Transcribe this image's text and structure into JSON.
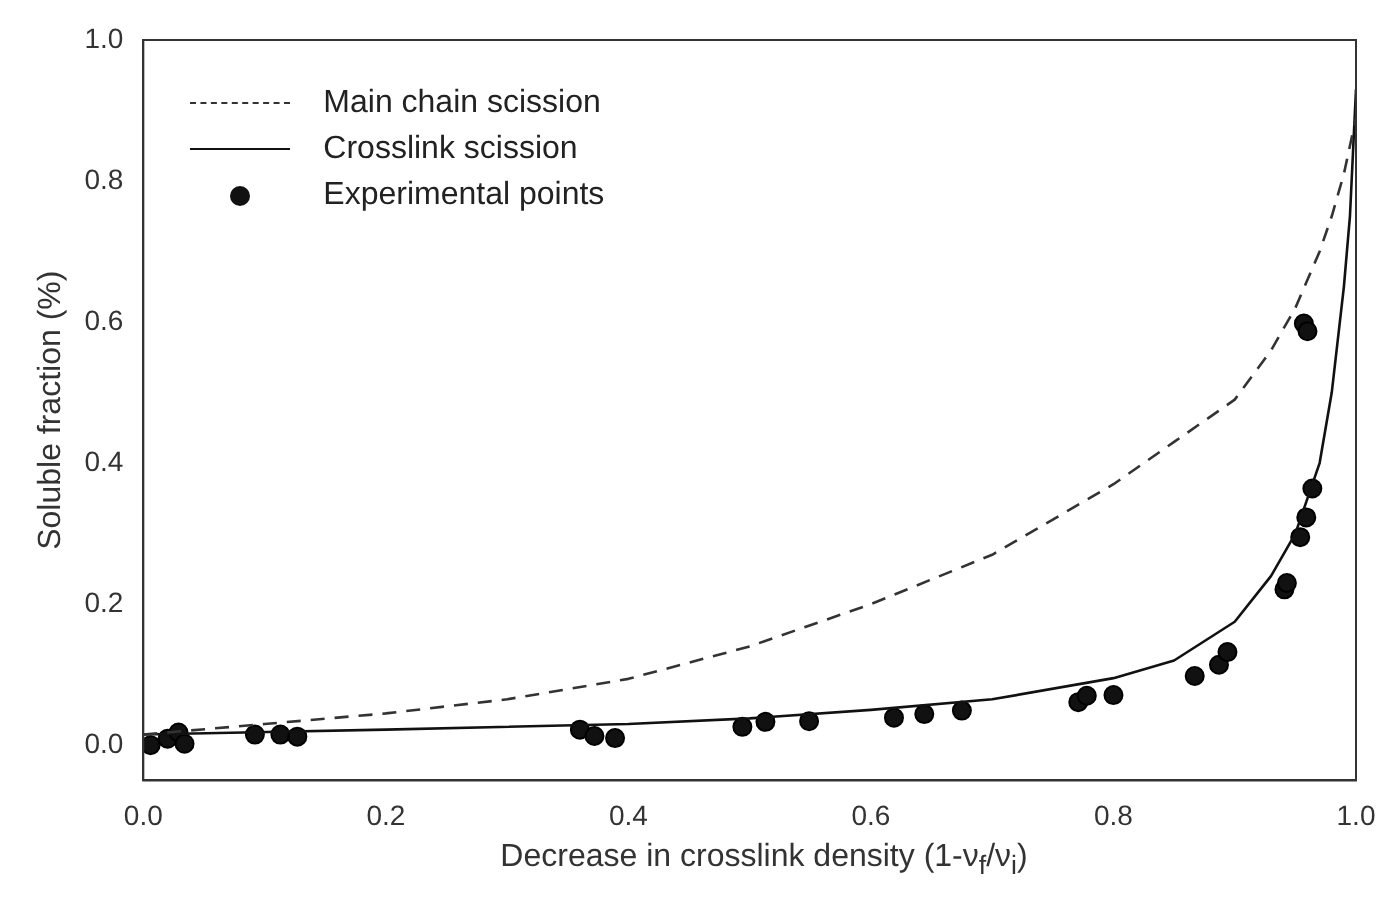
{
  "chart_data": {
    "type": "line",
    "xlabel": "Decrease in crosslink density (1-ν$_{f}$/ν$_{i}$)",
    "ylabel": "Soluble fraction (%)",
    "xlim": [
      0,
      1
    ],
    "xticks": [
      {
        "value": 0,
        "label": "0.0"
      },
      0.2,
      0.4,
      0.6,
      0.8,
      {
        "value": 1,
        "label": "1.0"
      }
    ],
    "ylim": [
      -0.05,
      1
    ],
    "yticks": [
      {
        "value": 0,
        "label": "0.0"
      },
      0.2,
      0.4,
      0.6,
      0.8,
      {
        "value": 1,
        "label": "1.0"
      }
    ],
    "grid": false,
    "legend": "top left",
    "series": [
      {
        "name": "Main chain scission",
        "line_style": "dashed",
        "marker": "none",
        "color": "#333333",
        "x": [
          0,
          0.1,
          0.2,
          0.3,
          0.4,
          0.5,
          0.6,
          0.7,
          0.8,
          0.85,
          0.9,
          0.93,
          0.95,
          0.97,
          0.98,
          0.99,
          1.0
        ],
        "values": [
          0.015,
          0.03,
          0.045,
          0.065,
          0.094,
          0.14,
          0.2,
          0.27,
          0.37,
          0.43,
          0.49,
          0.56,
          0.62,
          0.7,
          0.75,
          0.81,
          0.89
        ]
      },
      {
        "name": "Crosslink scission",
        "line_style": "solid",
        "marker": "none",
        "color": "#111111",
        "x": [
          0,
          0.2,
          0.4,
          0.5,
          0.6,
          0.7,
          0.8,
          0.85,
          0.9,
          0.93,
          0.95,
          0.96,
          0.97,
          0.98,
          0.99,
          0.995,
          1.0
        ],
        "values": [
          0.015,
          0.022,
          0.03,
          0.038,
          0.05,
          0.065,
          0.095,
          0.12,
          0.175,
          0.24,
          0.3,
          0.35,
          0.4,
          0.5,
          0.65,
          0.75,
          0.93
        ]
      },
      {
        "name": "Experimental points",
        "type": "scatter",
        "marker": "circle",
        "color": "#111111",
        "x": [
          0.006,
          0.02,
          0.029,
          0.034,
          0.092,
          0.113,
          0.127,
          0.36,
          0.372,
          0.389,
          0.494,
          0.513,
          0.549,
          0.619,
          0.644,
          0.675,
          0.771,
          0.778,
          0.8,
          0.867,
          0.887,
          0.894,
          0.941,
          0.943,
          0.954,
          0.959,
          0.964,
          0.957,
          0.96
        ],
        "values": [
          0.0,
          0.009,
          0.018,
          0.002,
          0.015,
          0.015,
          0.012,
          0.022,
          0.013,
          0.01,
          0.026,
          0.033,
          0.034,
          0.039,
          0.044,
          0.049,
          0.061,
          0.07,
          0.071,
          0.098,
          0.114,
          0.132,
          0.221,
          0.23,
          0.295,
          0.323,
          0.364,
          0.598,
          0.587
        ]
      }
    ]
  }
}
